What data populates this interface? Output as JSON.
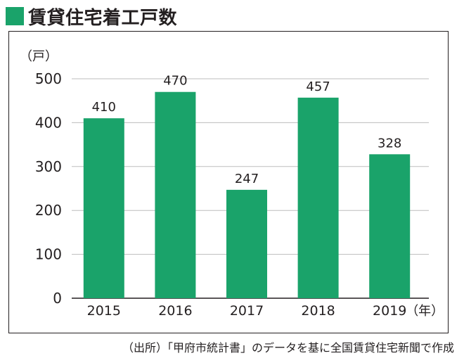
{
  "title": "賃貸住宅着工戸数",
  "source": "（出所）「甲府市統計書」のデータを基に全国賃貸住宅新聞で作成",
  "colors": {
    "bar": "#1aa36a",
    "accent_square": "#1aa36a",
    "text": "#231f20",
    "grid": "#bdbdbd"
  },
  "chart_data": {
    "type": "bar",
    "title": "賃貸住宅着工戸数",
    "ylabel": "（戸）",
    "xlabel": "",
    "x_unit_label": "（年）",
    "categories": [
      "2015",
      "2016",
      "2017",
      "2018",
      "2019"
    ],
    "values": [
      410,
      470,
      247,
      457,
      328
    ],
    "data_labels": [
      "410",
      "470",
      "247",
      "457",
      "328"
    ],
    "ylim": [
      0,
      500
    ],
    "yticks": [
      0,
      100,
      200,
      300,
      400,
      500
    ],
    "grid": true,
    "legend": "none"
  }
}
